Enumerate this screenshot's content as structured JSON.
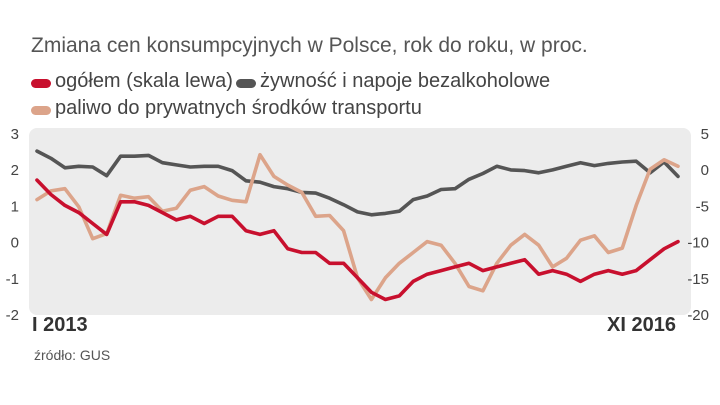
{
  "title": "Zmiana cen konsumpcyjnych w Polsce, rok do roku, w proc.",
  "source": "źródło: GUS",
  "legend": [
    {
      "label": "ogółem (skala lewa)",
      "color": "#c8102e"
    },
    {
      "label": "żywność i napoje bezalkoholowe",
      "color": "#555555"
    },
    {
      "label": "paliwo do prywatnych środków transportu",
      "color": "#dca48a"
    }
  ],
  "chart_data": {
    "type": "line",
    "title": "Zmiana cen konsumpcyjnych w Polsce, rok do roku, w proc.",
    "x_start": "I 2013",
    "x_end": "XI 2016",
    "grid": false,
    "plot_background": "#ececec",
    "y_left": {
      "ticks": [
        3,
        2,
        1,
        0,
        -1,
        -2
      ],
      "ylim": [
        -2,
        3
      ]
    },
    "y_right": {
      "ticks": [
        5,
        0,
        -5,
        -10,
        -15,
        -20
      ],
      "ylim": [
        -20,
        5
      ]
    },
    "series": [
      {
        "name": "ogółem (skala lewa)",
        "axis": "left",
        "color": "#c8102e",
        "values": [
          1.7,
          1.3,
          1.0,
          0.8,
          0.5,
          0.2,
          1.1,
          1.1,
          1.0,
          0.8,
          0.6,
          0.7,
          0.5,
          0.7,
          0.7,
          0.3,
          0.2,
          0.3,
          -0.2,
          -0.3,
          -0.3,
          -0.6,
          -0.6,
          -1.0,
          -1.4,
          -1.6,
          -1.5,
          -1.1,
          -0.9,
          -0.8,
          -0.7,
          -0.6,
          -0.8,
          -0.7,
          -0.6,
          -0.5,
          -0.9,
          -0.8,
          -0.9,
          -1.1,
          -0.9,
          -0.8,
          -0.9,
          -0.8,
          -0.5,
          -0.2,
          0.0
        ]
      },
      {
        "name": "żywność i napoje bezalkoholowe",
        "axis": "right",
        "color": "#555555",
        "values": [
          2.5,
          1.5,
          0.2,
          0.4,
          0.3,
          -0.9,
          1.8,
          1.8,
          1.9,
          0.9,
          0.6,
          0.3,
          0.4,
          0.4,
          -0.2,
          -1.6,
          -1.8,
          -2.4,
          -2.7,
          -3.2,
          -3.3,
          -4.0,
          -4.9,
          -5.9,
          -6.3,
          -6.1,
          -5.8,
          -4.2,
          -3.7,
          -2.8,
          -2.7,
          -1.4,
          -0.6,
          0.4,
          -0.1,
          -0.2,
          -0.5,
          -0.1,
          0.4,
          0.9,
          0.5,
          0.8,
          1.0,
          1.1,
          -0.5,
          1.0,
          -1.0
        ]
      },
      {
        "name": "paliwo do prywatnych środków transportu",
        "axis": "right",
        "color": "#dca48a",
        "values": [
          -4.2,
          -3.0,
          -2.7,
          -5.2,
          -9.6,
          -8.9,
          -3.6,
          -4.0,
          -3.8,
          -5.8,
          -5.4,
          -2.9,
          -2.4,
          -3.7,
          -4.3,
          -4.5,
          2.0,
          -1.0,
          -2.2,
          -3.2,
          -6.5,
          -6.4,
          -8.5,
          -15.0,
          -18.0,
          -15.0,
          -13.0,
          -11.5,
          -10.0,
          -10.5,
          -13.0,
          -16.2,
          -16.8,
          -13.0,
          -10.5,
          -9.0,
          -10.5,
          -13.5,
          -12.3,
          -9.8,
          -9.2,
          -11.5,
          -10.9,
          -5.0,
          0.0,
          1.3,
          0.4
        ]
      }
    ]
  }
}
